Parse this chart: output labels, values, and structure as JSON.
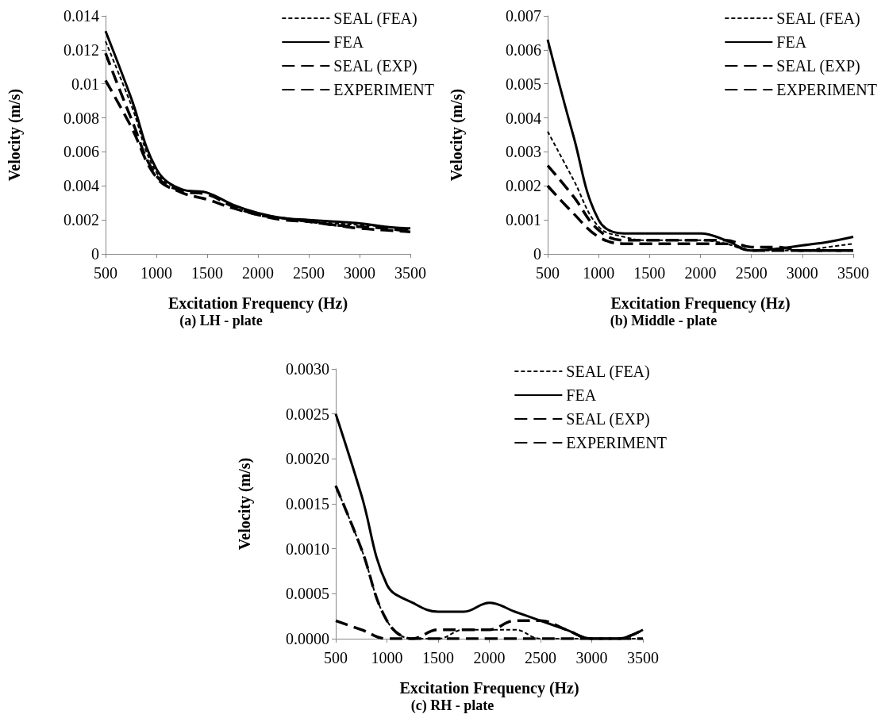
{
  "chart_data": [
    {
      "type": "line",
      "title": "(a) LH - plate",
      "xlabel": "Excitation Frequency (Hz)",
      "ylabel": "Velocity (m/s)",
      "x": [
        500,
        750,
        1000,
        1250,
        1500,
        1750,
        2000,
        2250,
        2500,
        2750,
        3000,
        3250,
        3500
      ],
      "xlim": [
        500,
        3500
      ],
      "xticks": [
        500,
        1000,
        1500,
        2000,
        2500,
        3000,
        3500
      ],
      "ylim": [
        0,
        0.014
      ],
      "yticks": [
        0,
        0.002,
        0.004,
        0.006,
        0.008,
        0.01,
        0.012,
        0.014
      ],
      "grid": false,
      "legend": "top right",
      "marker": "none",
      "series": [
        {
          "name": "SEAL (FEA)",
          "color": "#000000",
          "line_style": "dotted",
          "values": [
            0.0125,
            0.0088,
            0.0048,
            0.0038,
            0.0036,
            0.0029,
            0.0024,
            0.0021,
            0.0019,
            0.0018,
            0.0017,
            0.0016,
            0.0014
          ]
        },
        {
          "name": "FEA",
          "color": "#000000",
          "line_style": "solid",
          "values": [
            0.0131,
            0.0092,
            0.005,
            0.0038,
            0.0036,
            0.0029,
            0.0024,
            0.0021,
            0.002,
            0.0019,
            0.0018,
            0.0016,
            0.0015
          ]
        },
        {
          "name": "SEAL (EXP)",
          "color": "#000000",
          "line_style": "dashed",
          "values": [
            0.0118,
            0.008,
            0.0046,
            0.0037,
            0.0035,
            0.0028,
            0.0023,
            0.0021,
            0.0019,
            0.0017,
            0.0016,
            0.0015,
            0.0013
          ]
        },
        {
          "name": "EXPERIMENT",
          "color": "#000000",
          "line_style": "dashed",
          "values": [
            0.0102,
            0.0075,
            0.0045,
            0.0036,
            0.0032,
            0.0027,
            0.0023,
            0.002,
            0.0019,
            0.0017,
            0.0015,
            0.0014,
            0.0013
          ]
        }
      ]
    },
    {
      "type": "line",
      "title": "(b) Middle - plate",
      "xlabel": "Excitation Frequency (Hz)",
      "ylabel": "Velocity (m/s)",
      "x": [
        500,
        750,
        1000,
        1250,
        1500,
        1750,
        2000,
        2250,
        2500,
        2750,
        3000,
        3250,
        3500
      ],
      "xlim": [
        500,
        3500
      ],
      "xticks": [
        500,
        1000,
        1500,
        2000,
        2500,
        3000,
        3500
      ],
      "ylim": [
        0,
        0.007
      ],
      "yticks": [
        0,
        0.001,
        0.002,
        0.003,
        0.004,
        0.005,
        0.006,
        0.007
      ],
      "grid": false,
      "legend": "top right",
      "marker": "none",
      "series": [
        {
          "name": "SEAL (FEA)",
          "color": "#000000",
          "line_style": "dotted",
          "values": [
            0.0036,
            0.0022,
            0.0008,
            0.0005,
            0.0004,
            0.0004,
            0.0004,
            0.0003,
            0.0001,
            0.0001,
            0.0001,
            0.0002,
            0.0003
          ]
        },
        {
          "name": "FEA",
          "color": "#000000",
          "line_style": "solid",
          "values": [
            0.0063,
            0.0035,
            0.001,
            0.0006,
            0.0006,
            0.0006,
            0.0006,
            0.0004,
            0.0001,
            0.00015,
            0.00025,
            0.00035,
            0.0005
          ]
        },
        {
          "name": "SEAL (EXP)",
          "color": "#000000",
          "line_style": "dashed",
          "values": [
            0.0026,
            0.0017,
            0.0007,
            0.0004,
            0.0004,
            0.0004,
            0.0004,
            0.0004,
            0.0002,
            0.0002,
            0.0001,
            0.0001,
            0.0001
          ]
        },
        {
          "name": "EXPERIMENT",
          "color": "#000000",
          "line_style": "dashed",
          "values": [
            0.002,
            0.0012,
            0.0005,
            0.0003,
            0.0003,
            0.0003,
            0.0003,
            0.0003,
            0.0001,
            0.0001,
            0.0001,
            0.0001,
            0.0001
          ]
        }
      ]
    },
    {
      "type": "line",
      "title": "(c) RH - plate",
      "xlabel": "Excitation Frequency (Hz)",
      "ylabel": "Velocity (m/s)",
      "x": [
        500,
        750,
        1000,
        1250,
        1500,
        1750,
        2000,
        2250,
        2500,
        2750,
        3000,
        3250,
        3500
      ],
      "xlim": [
        500,
        3500
      ],
      "xticks": [
        500,
        1000,
        1500,
        2000,
        2500,
        3000,
        3500
      ],
      "ylim": [
        0,
        0.003
      ],
      "yticks": [
        {
          "value": 0,
          "label": "0.0000"
        },
        {
          "value": 0.0005,
          "label": "0.0005"
        },
        {
          "value": 0.001,
          "label": "0.0010"
        },
        {
          "value": 0.0015,
          "label": "0.0015"
        },
        {
          "value": 0.002,
          "label": "0.0020"
        },
        {
          "value": 0.0025,
          "label": "0.0025"
        },
        {
          "value": 0.003,
          "label": "0.0030"
        }
      ],
      "grid": false,
      "legend": "top right",
      "marker": "none",
      "series": [
        {
          "name": "SEAL (FEA)",
          "color": "#000000",
          "line_style": "dotted",
          "values": [
            0.0017,
            0.001,
            0.0002,
            0,
            0,
            0.0001,
            0.0001,
            0.0001,
            0,
            0,
            0,
            0,
            0
          ]
        },
        {
          "name": "FEA",
          "color": "#000000",
          "line_style": "solid",
          "values": [
            0.0025,
            0.0016,
            0.0006,
            0.0004,
            0.0003,
            0.0003,
            0.0004,
            0.0003,
            0.0002,
            0.0001,
            0,
            0,
            0.0001
          ]
        },
        {
          "name": "SEAL (EXP)",
          "color": "#000000",
          "line_style": "dashed",
          "values": [
            0.0017,
            0.001,
            0.0002,
            0,
            0.0001,
            0.0001,
            0.0001,
            0.0002,
            0.0002,
            0.0001,
            0,
            0,
            0.0001
          ]
        },
        {
          "name": "EXPERIMENT",
          "color": "#000000",
          "line_style": "dashed",
          "values": [
            0.0002,
            0.0001,
            0,
            0,
            0,
            0,
            0,
            0,
            0,
            0,
            0,
            0,
            0
          ]
        }
      ]
    }
  ]
}
